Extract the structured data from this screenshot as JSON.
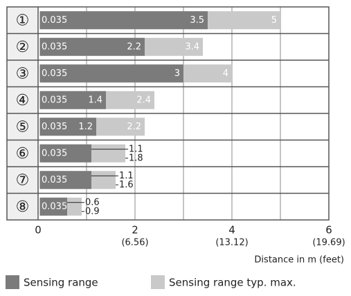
{
  "chart_data": {
    "type": "bar",
    "orientation": "horizontal",
    "categories": [
      "①",
      "②",
      "③",
      "④",
      "⑤",
      "⑥",
      "⑦",
      "⑧"
    ],
    "min_values": [
      0.035,
      0.035,
      0.035,
      0.035,
      0.035,
      0.035,
      0.035,
      0.035
    ],
    "series": [
      {
        "name": "Sensing range",
        "color": "#7b7b7b",
        "values": [
          3.5,
          2.2,
          3,
          1.4,
          1.2,
          1.1,
          1.1,
          0.6
        ]
      },
      {
        "name": "Sensing range typ. max.",
        "color": "#c9c9c9",
        "values": [
          5,
          3.4,
          4,
          2.4,
          2.2,
          1.8,
          1.6,
          0.9
        ]
      }
    ],
    "xlim": [
      0,
      6
    ],
    "xticks": [
      0,
      2,
      4,
      6
    ],
    "x2ticks": [
      {
        "value": 2,
        "label": "(6.56)"
      },
      {
        "value": 4,
        "label": "(13.12)"
      },
      {
        "value": 6,
        "label": "(19.69)"
      }
    ],
    "grid_ticks": [
      0,
      1,
      2,
      3,
      4,
      5,
      6
    ],
    "grid": true,
    "xlabel": "Distance in m (feet)",
    "legend": "bottom"
  }
}
